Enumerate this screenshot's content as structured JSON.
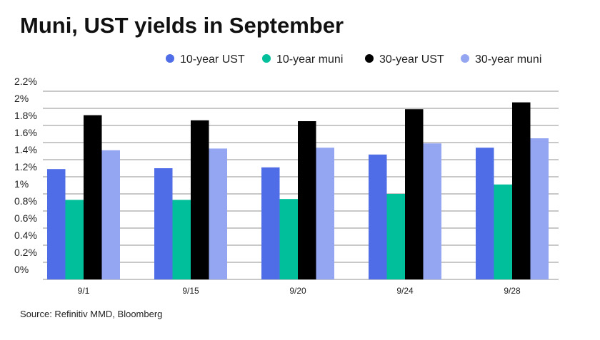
{
  "chart_data": {
    "type": "bar",
    "title": "Muni, UST yields in September",
    "source": "Source: Refinitiv MMD, Bloomberg",
    "xlabel": "",
    "ylabel": "",
    "ylim": [
      0,
      2.2
    ],
    "yticks": [
      0,
      0.2,
      0.4,
      0.6,
      0.8,
      1,
      1.2,
      1.4,
      1.6,
      1.8,
      2,
      2.2
    ],
    "ytick_labels": [
      "0%",
      "0.2%",
      "0.4%",
      "0.6%",
      "0.8%",
      "1%",
      "1.2%",
      "1.4%",
      "1.6%",
      "1.8%",
      "2%",
      "2.2%"
    ],
    "grid": true,
    "legend_position": "top-right",
    "categories": [
      "9/1",
      "9/15",
      "9/20",
      "9/24",
      "9/28"
    ],
    "series": [
      {
        "name": "10-year UST",
        "color": "#4f6de6",
        "values": [
          1.29,
          1.3,
          1.31,
          1.46,
          1.54
        ]
      },
      {
        "name": "10-year muni",
        "color": "#00bf9a",
        "values": [
          0.93,
          0.93,
          0.94,
          1.0,
          1.11
        ]
      },
      {
        "name": "30-year UST",
        "color": "#000000",
        "values": [
          1.92,
          1.86,
          1.85,
          1.99,
          2.07
        ]
      },
      {
        "name": "30-year muni",
        "color": "#94a6f2",
        "values": [
          1.51,
          1.53,
          1.54,
          1.59,
          1.65
        ]
      }
    ]
  }
}
